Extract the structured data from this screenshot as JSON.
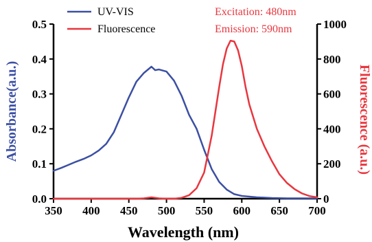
{
  "chart_data": {
    "type": "line",
    "xlabel": "Wavelength (nm)",
    "ylabel_left": "Absorbance(a.u.)",
    "ylabel_right": "Fluorescence (a.u.)",
    "xlim": [
      350,
      700
    ],
    "ylim_left": [
      0,
      0.5
    ],
    "ylim_right": [
      0,
      1000
    ],
    "x_ticks": [
      "350",
      "400",
      "450",
      "500",
      "550",
      "600",
      "650",
      "700"
    ],
    "y_left_ticks": [
      "0.0",
      "0.1",
      "0.2",
      "0.3",
      "0.4",
      "0.5"
    ],
    "y_right_ticks": [
      "0",
      "200",
      "400",
      "600",
      "800",
      "1000"
    ],
    "grid": false,
    "legend_placement": "top-left",
    "annotations": [
      "Excitation: 480nm",
      "Emission: 590nm"
    ],
    "colors": {
      "uv_vis": "#3b4fa3",
      "fluorescence": "#e8363e"
    },
    "series": [
      {
        "name": "UV-VIS",
        "axis": "left",
        "x": [
          350,
          360,
          370,
          380,
          390,
          400,
          410,
          420,
          430,
          440,
          450,
          460,
          470,
          480,
          485,
          490,
          500,
          510,
          520,
          530,
          540,
          550,
          560,
          570,
          580,
          590,
          600,
          620,
          640,
          660,
          680,
          700
        ],
        "y": [
          0.08,
          0.088,
          0.097,
          0.106,
          0.114,
          0.124,
          0.138,
          0.157,
          0.19,
          0.24,
          0.29,
          0.335,
          0.36,
          0.378,
          0.368,
          0.37,
          0.364,
          0.338,
          0.295,
          0.24,
          0.2,
          0.14,
          0.085,
          0.048,
          0.026,
          0.013,
          0.008,
          0.004,
          0.002,
          0.001,
          0.001,
          0.001
        ]
      },
      {
        "name": "Fluorescence",
        "axis": "right",
        "x": [
          350,
          460,
          470,
          480,
          490,
          500,
          510,
          520,
          530,
          540,
          550,
          560,
          565,
          570,
          575,
          580,
          585,
          590,
          595,
          600,
          605,
          610,
          620,
          630,
          640,
          650,
          660,
          670,
          680,
          690,
          700
        ],
        "y": [
          0,
          0,
          2,
          8,
          2,
          0,
          0,
          5,
          20,
          60,
          150,
          360,
          500,
          640,
          770,
          860,
          905,
          900,
          850,
          760,
          640,
          540,
          400,
          300,
          215,
          140,
          90,
          55,
          30,
          15,
          8
        ]
      }
    ]
  }
}
